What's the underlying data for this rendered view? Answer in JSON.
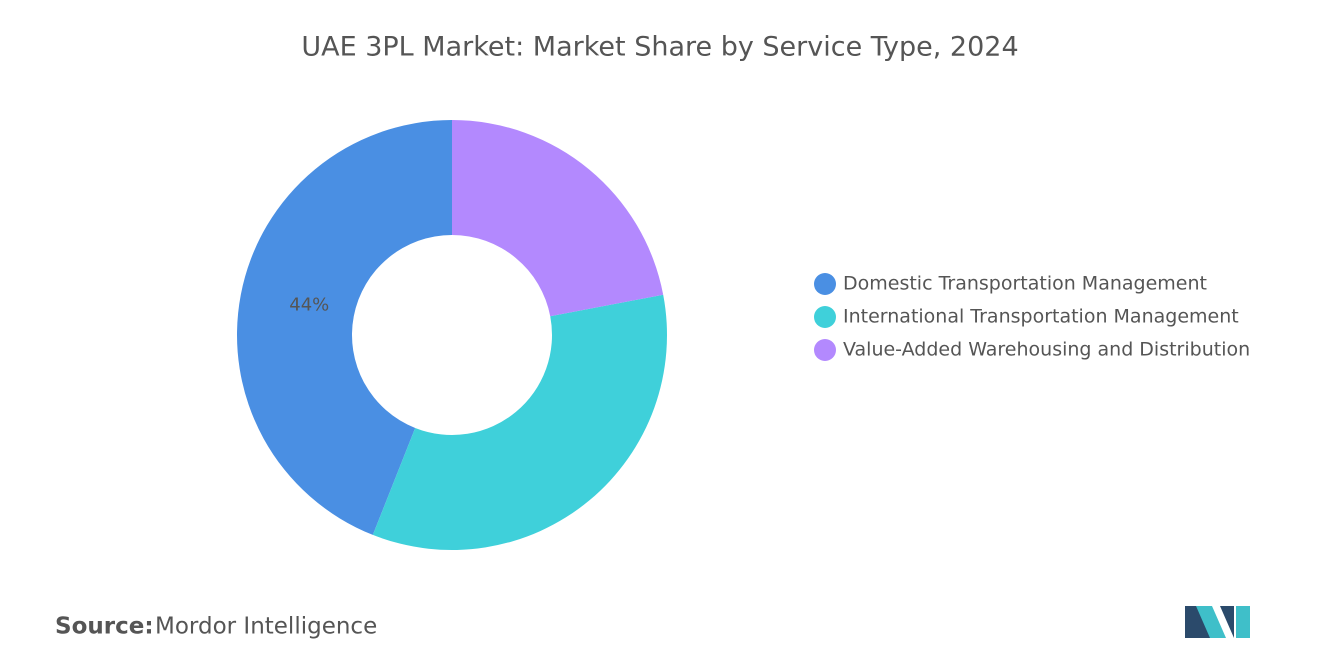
{
  "chart_data": {
    "type": "donut",
    "title": "UAE 3PL Market: Market Share by Service Type, 2024",
    "series": [
      {
        "name": "Domestic Transportation Management",
        "color": "#4a8fe3"
      },
      {
        "name": "International Transportation Management",
        "color": "#3fd0da"
      },
      {
        "name": "Value-Added Warehousing and Distribution",
        "color": "#b389fe"
      }
    ],
    "values": [
      44,
      34,
      22
    ],
    "value_labels": [
      "44%",
      null,
      null
    ],
    "source_label": "Source:",
    "source": "Mordor Intelligence"
  }
}
